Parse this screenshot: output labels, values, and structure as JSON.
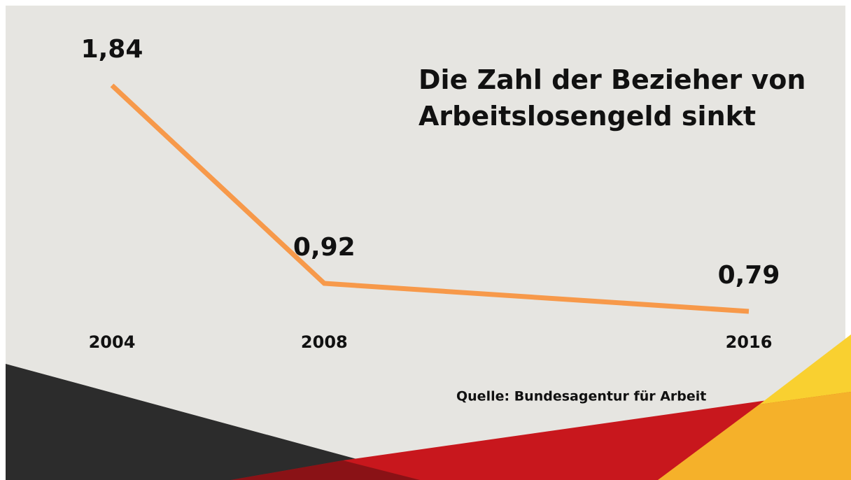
{
  "chart_data": {
    "type": "line",
    "title": "Die Zahl der Bezieher von Arbeitslosengeld sinkt",
    "x": [
      2004,
      2008,
      2016
    ],
    "xlim": [
      2004,
      2016
    ],
    "xticks": [
      2004,
      2008,
      2016
    ],
    "series": [
      {
        "color": "#f7994a",
        "values": [
          1.84,
          0.92,
          0.79
        ],
        "value_labels": [
          "1,84",
          "0,92",
          "0,79"
        ]
      }
    ],
    "source": "Quelle: Bundesagentur für Arbeit"
  }
}
